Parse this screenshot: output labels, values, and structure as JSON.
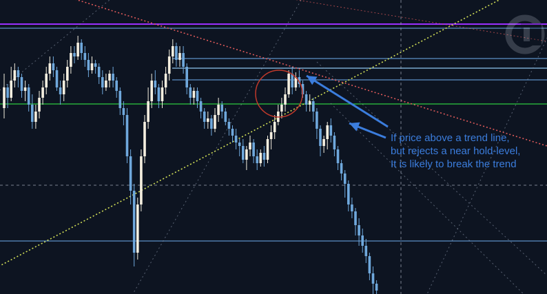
{
  "colors": {
    "background": "#0d1421",
    "candle_up": "#f5efe0",
    "candle_down": "#6fa8dc",
    "level_blue": "#5b8fc7",
    "level_bright": "#8ec5f0",
    "level_purple": "#9b30ff",
    "level_green": "#2ecc40",
    "trend_yellow": "#d4e157",
    "trend_red": "#e05a5a",
    "diagonal_gray": "#8a95a8",
    "crosshair": "#a7b0bf",
    "annotation": "#3b7ddd",
    "highlight_circle": "#c0392b"
  },
  "annotation": {
    "lines": [
      "If price above a trend line,",
      "but rejects a near hold-level,",
      "It is likely to break the trend"
    ]
  },
  "watermark": {
    "icon": "logo-badge-icon"
  },
  "chart_data": {
    "type": "candlestick",
    "title": "",
    "xlabel": "",
    "ylabel": "",
    "grid": false,
    "ylim": [
      0,
      427
    ],
    "horizontal_levels": [
      {
        "kind": "resistance",
        "color": "purple",
        "y": 392
      },
      {
        "kind": "resistance",
        "color": "blue",
        "y": 386
      },
      {
        "kind": "resistance",
        "color": "blue",
        "y": 342
      },
      {
        "kind": "resistance",
        "color": "bright-blue",
        "y": 328
      },
      {
        "kind": "hold-level",
        "color": "blue",
        "y": 311
      },
      {
        "kind": "hold-level",
        "color": "green",
        "y": 276
      },
      {
        "kind": "support",
        "color": "blue",
        "y": 77
      }
    ],
    "crosshair": {
      "x_index": 117,
      "y": 158
    },
    "trend_lines": [
      {
        "name": "ascending trend line",
        "style": "dotted",
        "color": "yellow",
        "from": [
          -2,
          40
        ],
        "to": [
          180,
          427
        ]
      },
      {
        "name": "descending trend line",
        "style": "dotted",
        "color": "red",
        "from": [
          -2,
          434
        ],
        "to": [
          200,
          180
        ]
      }
    ],
    "candles": [
      [
        270,
        300,
        255,
        320
      ],
      [
        300,
        285,
        270,
        305
      ],
      [
        285,
        310,
        280,
        330
      ],
      [
        310,
        325,
        300,
        335
      ],
      [
        325,
        315,
        300,
        330
      ],
      [
        315,
        295,
        285,
        320
      ],
      [
        295,
        300,
        280,
        310
      ],
      [
        300,
        275,
        265,
        305
      ],
      [
        275,
        250,
        240,
        290
      ],
      [
        250,
        265,
        240,
        275
      ],
      [
        265,
        285,
        255,
        295
      ],
      [
        285,
        300,
        275,
        310
      ],
      [
        300,
        320,
        290,
        330
      ],
      [
        320,
        335,
        310,
        345
      ],
      [
        335,
        325,
        315,
        345
      ],
      [
        325,
        300,
        295,
        330
      ],
      [
        300,
        290,
        275,
        310
      ],
      [
        290,
        310,
        280,
        320
      ],
      [
        310,
        330,
        300,
        340
      ],
      [
        330,
        350,
        320,
        360
      ],
      [
        350,
        345,
        335,
        360
      ],
      [
        345,
        365,
        340,
        375
      ],
      [
        365,
        350,
        340,
        370
      ],
      [
        350,
        340,
        330,
        360
      ],
      [
        340,
        325,
        315,
        350
      ],
      [
        325,
        335,
        320,
        345
      ],
      [
        335,
        330,
        320,
        340
      ],
      [
        330,
        315,
        305,
        335
      ],
      [
        315,
        300,
        290,
        325
      ],
      [
        300,
        310,
        295,
        320
      ],
      [
        310,
        320,
        300,
        325
      ],
      [
        320,
        310,
        300,
        330
      ],
      [
        310,
        295,
        285,
        315
      ],
      [
        295,
        270,
        260,
        300
      ],
      [
        270,
        260,
        245,
        280
      ],
      [
        260,
        200,
        190,
        270
      ],
      [
        200,
        150,
        130,
        210
      ],
      [
        150,
        60,
        40,
        160
      ],
      [
        60,
        130,
        50,
        140
      ],
      [
        130,
        200,
        120,
        210
      ],
      [
        200,
        250,
        190,
        260
      ],
      [
        250,
        280,
        240,
        300
      ],
      [
        280,
        310,
        270,
        320
      ],
      [
        310,
        300,
        290,
        325
      ],
      [
        300,
        280,
        270,
        305
      ],
      [
        280,
        300,
        270,
        310
      ],
      [
        300,
        320,
        290,
        330
      ],
      [
        320,
        345,
        310,
        355
      ],
      [
        345,
        360,
        335,
        370
      ],
      [
        360,
        340,
        330,
        365
      ],
      [
        340,
        350,
        330,
        360
      ],
      [
        350,
        330,
        320,
        360
      ],
      [
        330,
        300,
        290,
        335
      ],
      [
        300,
        285,
        275,
        305
      ],
      [
        285,
        295,
        275,
        300
      ],
      [
        295,
        280,
        270,
        300
      ],
      [
        280,
        265,
        255,
        285
      ],
      [
        265,
        250,
        240,
        270
      ],
      [
        250,
        255,
        240,
        265
      ],
      [
        255,
        240,
        230,
        260
      ],
      [
        240,
        260,
        235,
        270
      ],
      [
        260,
        275,
        250,
        285
      ],
      [
        275,
        265,
        255,
        280
      ],
      [
        265,
        250,
        245,
        270
      ],
      [
        250,
        240,
        230,
        255
      ],
      [
        240,
        230,
        220,
        245
      ],
      [
        230,
        220,
        210,
        240
      ],
      [
        220,
        215,
        200,
        225
      ],
      [
        215,
        195,
        190,
        225
      ],
      [
        195,
        210,
        180,
        215
      ],
      [
        210,
        220,
        200,
        230
      ],
      [
        220,
        200,
        190,
        225
      ],
      [
        200,
        190,
        180,
        210
      ],
      [
        190,
        205,
        185,
        210
      ],
      [
        205,
        195,
        185,
        215
      ],
      [
        195,
        225,
        190,
        230
      ],
      [
        225,
        235,
        210,
        245
      ],
      [
        235,
        250,
        225,
        260
      ],
      [
        250,
        265,
        245,
        275
      ],
      [
        265,
        275,
        255,
        285
      ],
      [
        275,
        290,
        265,
        300
      ],
      [
        290,
        320,
        285,
        325
      ],
      [
        320,
        300,
        290,
        330
      ],
      [
        300,
        315,
        295,
        322
      ],
      [
        315,
        305,
        300,
        325
      ],
      [
        305,
        290,
        285,
        310
      ],
      [
        290,
        275,
        265,
        295
      ],
      [
        275,
        280,
        265,
        290
      ],
      [
        280,
        265,
        250,
        285
      ],
      [
        265,
        240,
        225,
        270
      ],
      [
        240,
        215,
        200,
        245
      ],
      [
        215,
        225,
        205,
        230
      ],
      [
        225,
        245,
        210,
        250
      ],
      [
        245,
        230,
        220,
        255
      ],
      [
        230,
        210,
        200,
        235
      ],
      [
        210,
        190,
        180,
        215
      ],
      [
        190,
        175,
        165,
        195
      ],
      [
        175,
        160,
        140,
        180
      ],
      [
        160,
        130,
        120,
        165
      ],
      [
        130,
        120,
        110,
        140
      ],
      [
        120,
        100,
        85,
        125
      ],
      [
        100,
        85,
        70,
        110
      ],
      [
        85,
        70,
        60,
        95
      ],
      [
        70,
        55,
        45,
        80
      ],
      [
        55,
        30,
        20,
        60
      ],
      [
        30,
        15,
        0,
        40
      ],
      [
        15,
        5,
        -5,
        20
      ]
    ]
  }
}
